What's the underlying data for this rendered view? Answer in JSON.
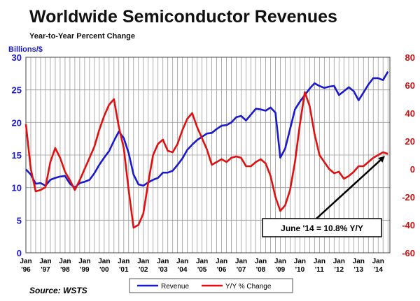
{
  "chart_data": {
    "type": "line",
    "title": "Worldwide Semiconductor Revenues",
    "subtitle": "Year-to-Year Percent Change",
    "ylabel_left": "Billions/$",
    "source": "Source: WSTS",
    "x_ticks": [
      {
        "top": "Jan",
        "bottom": "'96"
      },
      {
        "top": "Jan",
        "bottom": "'97"
      },
      {
        "top": "Jan",
        "bottom": "'98"
      },
      {
        "top": "Jan",
        "bottom": "'99"
      },
      {
        "top": "Jan",
        "bottom": "'00"
      },
      {
        "top": "Jan",
        "bottom": "'01"
      },
      {
        "top": "Jan",
        "bottom": "'02"
      },
      {
        "top": "Jan",
        "bottom": "'03"
      },
      {
        "top": "Jan",
        "bottom": "'04"
      },
      {
        "top": "Jan",
        "bottom": "'05"
      },
      {
        "top": "Jan",
        "bottom": "'06"
      },
      {
        "top": "Jan",
        "bottom": "'07"
      },
      {
        "top": "Jan",
        "bottom": "'08"
      },
      {
        "top": "Jan",
        "bottom": "'09"
      },
      {
        "top": "Jan",
        "bottom": "'10"
      },
      {
        "top": "Jan",
        "bottom": "'11"
      },
      {
        "top": "Jan",
        "bottom": "'12"
      },
      {
        "top": "Jan",
        "bottom": "'13"
      },
      {
        "top": "Jan",
        "bottom": "'14"
      }
    ],
    "x_range": [
      1996.0,
      2014.6
    ],
    "y_left": {
      "min": 0,
      "max": 30,
      "ticks": [
        0,
        5,
        10,
        15,
        20,
        25,
        30
      ]
    },
    "y_right": {
      "min": -60,
      "max": 80,
      "ticks": [
        -60,
        -40,
        -20,
        0,
        20,
        40,
        60,
        80
      ]
    },
    "grid": true,
    "legend_position": "bottom-center",
    "annotation": {
      "text": "June '14 = 10.8% Y/Y",
      "x": 2014.42,
      "y_pct": 10.8
    },
    "series": [
      {
        "name": "Revenue",
        "axis": "left",
        "color": "#1a1acc",
        "points": [
          [
            1996.0,
            12.8
          ],
          [
            1996.25,
            12.0
          ],
          [
            1996.5,
            10.6
          ],
          [
            1996.75,
            10.7
          ],
          [
            1997.0,
            10.3
          ],
          [
            1997.25,
            11.2
          ],
          [
            1997.5,
            11.5
          ],
          [
            1997.75,
            11.7
          ],
          [
            1998.0,
            11.8
          ],
          [
            1998.25,
            10.6
          ],
          [
            1998.5,
            10.0
          ],
          [
            1998.75,
            10.7
          ],
          [
            1999.0,
            10.9
          ],
          [
            1999.25,
            11.2
          ],
          [
            1999.5,
            12.2
          ],
          [
            1999.75,
            13.5
          ],
          [
            2000.0,
            14.6
          ],
          [
            2000.25,
            15.6
          ],
          [
            2000.5,
            17.2
          ],
          [
            2000.75,
            18.6
          ],
          [
            2001.0,
            17.6
          ],
          [
            2001.25,
            15.3
          ],
          [
            2001.5,
            12.0
          ],
          [
            2001.75,
            10.5
          ],
          [
            2002.0,
            10.3
          ],
          [
            2002.25,
            10.8
          ],
          [
            2002.5,
            11.2
          ],
          [
            2002.75,
            11.5
          ],
          [
            2003.0,
            12.3
          ],
          [
            2003.25,
            12.3
          ],
          [
            2003.5,
            12.6
          ],
          [
            2003.75,
            13.5
          ],
          [
            2004.0,
            14.5
          ],
          [
            2004.25,
            15.8
          ],
          [
            2004.5,
            16.6
          ],
          [
            2004.75,
            17.3
          ],
          [
            2005.0,
            17.8
          ],
          [
            2005.25,
            18.3
          ],
          [
            2005.5,
            18.4
          ],
          [
            2005.75,
            19.0
          ],
          [
            2006.0,
            19.5
          ],
          [
            2006.25,
            19.6
          ],
          [
            2006.5,
            20.0
          ],
          [
            2006.75,
            20.8
          ],
          [
            2007.0,
            21.0
          ],
          [
            2007.25,
            20.3
          ],
          [
            2007.5,
            21.2
          ],
          [
            2007.75,
            22.1
          ],
          [
            2008.0,
            22.0
          ],
          [
            2008.25,
            21.8
          ],
          [
            2008.5,
            22.3
          ],
          [
            2008.75,
            21.5
          ],
          [
            2009.0,
            14.6
          ],
          [
            2009.25,
            16.0
          ],
          [
            2009.5,
            19.0
          ],
          [
            2009.75,
            22.0
          ],
          [
            2010.0,
            23.2
          ],
          [
            2010.25,
            24.2
          ],
          [
            2010.5,
            25.2
          ],
          [
            2010.75,
            26.0
          ],
          [
            2011.0,
            25.6
          ],
          [
            2011.25,
            25.3
          ],
          [
            2011.5,
            25.5
          ],
          [
            2011.75,
            25.6
          ],
          [
            2012.0,
            24.2
          ],
          [
            2012.25,
            24.8
          ],
          [
            2012.5,
            25.4
          ],
          [
            2012.75,
            24.8
          ],
          [
            2013.0,
            23.4
          ],
          [
            2013.25,
            24.6
          ],
          [
            2013.5,
            25.8
          ],
          [
            2013.75,
            26.8
          ],
          [
            2014.0,
            26.8
          ],
          [
            2014.25,
            26.5
          ],
          [
            2014.5,
            27.8
          ]
        ]
      },
      {
        "name": "Y/Y % Change",
        "axis": "right",
        "color": "#e01010",
        "points": [
          [
            1996.0,
            32
          ],
          [
            1996.25,
            0
          ],
          [
            1996.5,
            -16
          ],
          [
            1996.75,
            -15
          ],
          [
            1997.0,
            -13
          ],
          [
            1997.25,
            5
          ],
          [
            1997.5,
            15
          ],
          [
            1997.75,
            8
          ],
          [
            1998.0,
            -2
          ],
          [
            1998.25,
            -8
          ],
          [
            1998.5,
            -15
          ],
          [
            1998.75,
            -8
          ],
          [
            1999.0,
            0
          ],
          [
            1999.25,
            8
          ],
          [
            1999.5,
            16
          ],
          [
            1999.75,
            28
          ],
          [
            2000.0,
            38
          ],
          [
            2000.25,
            46
          ],
          [
            2000.5,
            50
          ],
          [
            2000.75,
            30
          ],
          [
            2001.0,
            15
          ],
          [
            2001.25,
            -15
          ],
          [
            2001.5,
            -42
          ],
          [
            2001.75,
            -40
          ],
          [
            2002.0,
            -32
          ],
          [
            2002.25,
            -10
          ],
          [
            2002.5,
            10
          ],
          [
            2002.75,
            18
          ],
          [
            2003.0,
            21
          ],
          [
            2003.25,
            13
          ],
          [
            2003.5,
            12
          ],
          [
            2003.75,
            18
          ],
          [
            2004.0,
            28
          ],
          [
            2004.25,
            36
          ],
          [
            2004.5,
            40
          ],
          [
            2004.75,
            30
          ],
          [
            2005.0,
            22
          ],
          [
            2005.25,
            14
          ],
          [
            2005.5,
            3
          ],
          [
            2005.75,
            5
          ],
          [
            2006.0,
            7
          ],
          [
            2006.25,
            5
          ],
          [
            2006.5,
            8
          ],
          [
            2006.75,
            9
          ],
          [
            2007.0,
            8
          ],
          [
            2007.25,
            2
          ],
          [
            2007.5,
            2
          ],
          [
            2007.75,
            5
          ],
          [
            2008.0,
            7
          ],
          [
            2008.25,
            4
          ],
          [
            2008.5,
            -5
          ],
          [
            2008.75,
            -20
          ],
          [
            2009.0,
            -30
          ],
          [
            2009.25,
            -26
          ],
          [
            2009.5,
            -15
          ],
          [
            2009.75,
            5
          ],
          [
            2010.0,
            32
          ],
          [
            2010.25,
            55
          ],
          [
            2010.5,
            45
          ],
          [
            2010.75,
            25
          ],
          [
            2011.0,
            10
          ],
          [
            2011.25,
            5
          ],
          [
            2011.5,
            0
          ],
          [
            2011.75,
            -3
          ],
          [
            2012.0,
            -2
          ],
          [
            2012.25,
            -7
          ],
          [
            2012.5,
            -5
          ],
          [
            2012.75,
            -2
          ],
          [
            2013.0,
            2
          ],
          [
            2013.25,
            2
          ],
          [
            2013.5,
            5
          ],
          [
            2013.75,
            8
          ],
          [
            2014.0,
            10
          ],
          [
            2014.25,
            12
          ],
          [
            2014.5,
            10.8
          ]
        ]
      }
    ]
  }
}
